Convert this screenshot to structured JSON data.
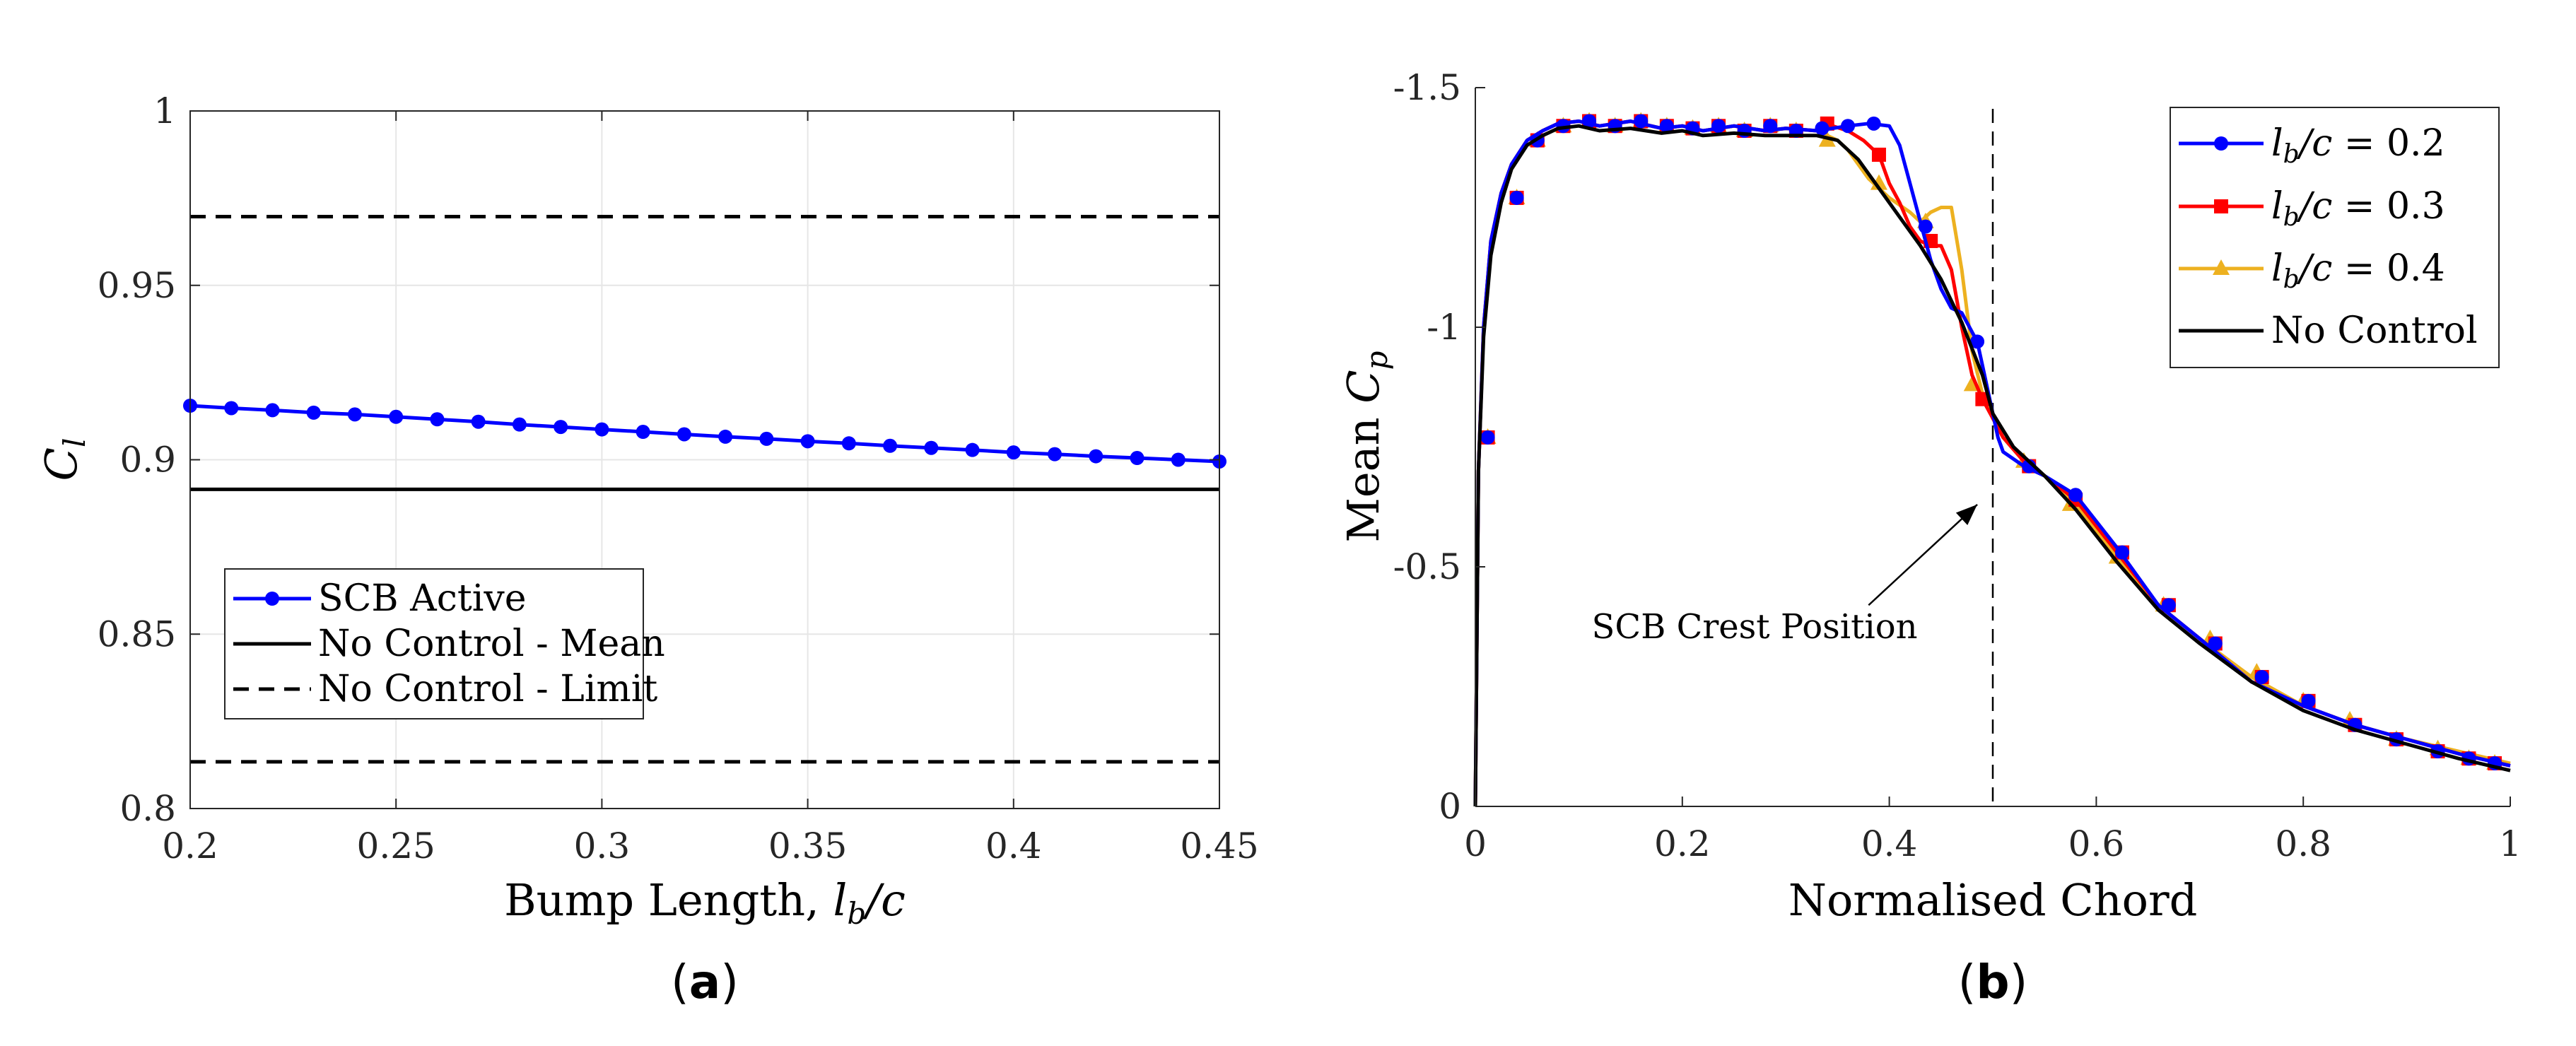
{
  "chart_data": [
    {
      "id": "a",
      "type": "line",
      "panel_label": "(a)",
      "xlabel": "Bump Length, l_b/c",
      "ylabel": "C_l",
      "xlim": [
        0.2,
        0.45
      ],
      "ylim": [
        0.8,
        1.0
      ],
      "xticks": [
        0.2,
        0.25,
        0.3,
        0.35,
        0.4,
        0.45
      ],
      "xtick_labels": [
        "0.2",
        "0.25",
        "0.3",
        "0.35",
        "0.4",
        "0.45"
      ],
      "yticks": [
        0.8,
        0.85,
        0.9,
        0.95,
        1.0
      ],
      "ytick_labels": [
        "0.8",
        "0.85",
        "0.9",
        "0.95",
        "1"
      ],
      "grid": true,
      "legend_position": "lower-left",
      "series": [
        {
          "name": "SCB Active",
          "color": "#0000ff",
          "marker": "circle",
          "x": [
            0.2,
            0.21,
            0.22,
            0.23,
            0.24,
            0.25,
            0.26,
            0.27,
            0.28,
            0.29,
            0.3,
            0.31,
            0.32,
            0.33,
            0.34,
            0.35,
            0.36,
            0.37,
            0.38,
            0.39,
            0.4,
            0.41,
            0.42,
            0.43,
            0.44,
            0.45
          ],
          "y": [
            0.9155,
            0.9148,
            0.9142,
            0.9135,
            0.913,
            0.9123,
            0.9116,
            0.9109,
            0.9101,
            0.9094,
            0.9087,
            0.908,
            0.9073,
            0.9066,
            0.906,
            0.9053,
            0.9047,
            0.904,
            0.9034,
            0.9028,
            0.9021,
            0.9016,
            0.901,
            0.9005,
            0.9,
            0.8995
          ]
        },
        {
          "name": "No Control - Mean",
          "color": "#000000",
          "style": "solid",
          "x": [
            0.2,
            0.45
          ],
          "y": [
            0.8915,
            0.8915
          ]
        },
        {
          "name": "No Control - Limit",
          "color": "#000000",
          "style": "dashed",
          "x": [
            0.2,
            0.45
          ],
          "y": [
            0.9697,
            0.9697
          ],
          "x_lower": [
            0.2,
            0.45
          ],
          "y_lower": [
            0.8134,
            0.8134
          ]
        }
      ]
    },
    {
      "id": "b",
      "type": "line",
      "panel_label": "(b)",
      "xlabel": "Normalised Chord",
      "ylabel": "Mean C_p",
      "xlim": [
        0,
        1
      ],
      "ylim": [
        0,
        -1.5
      ],
      "y_reversed": true,
      "xticks": [
        0,
        0.2,
        0.4,
        0.6,
        0.8,
        1
      ],
      "xtick_labels": [
        "0",
        "0.2",
        "0.4",
        "0.6",
        "0.8",
        "1"
      ],
      "yticks": [
        0,
        -0.5,
        -1,
        -1.5
      ],
      "ytick_labels": [
        "0",
        "-0.5",
        "-1",
        "-1.5"
      ],
      "grid": false,
      "legend_position": "top-right",
      "annotation": {
        "text": "SCB Crest Position",
        "line_x": 0.5,
        "arrow_from": [
          0.38,
          -0.42
        ],
        "arrow_to": [
          0.485,
          -0.63
        ]
      },
      "series": [
        {
          "name": "l_b/c = 0.2",
          "color": "#0000ff",
          "marker": "circle",
          "x": [
            0.0,
            0.003,
            0.008,
            0.015,
            0.025,
            0.035,
            0.05,
            0.065,
            0.08,
            0.1,
            0.12,
            0.15,
            0.18,
            0.2,
            0.22,
            0.25,
            0.28,
            0.3,
            0.33,
            0.36,
            0.38,
            0.4,
            0.41,
            0.42,
            0.43,
            0.44,
            0.45,
            0.46,
            0.47,
            0.48,
            0.485,
            0.49,
            0.495,
            0.5,
            0.505,
            0.51,
            0.53,
            0.55,
            0.58,
            0.62,
            0.66,
            0.7,
            0.75,
            0.8,
            0.85,
            0.9,
            0.95,
            1.0
          ],
          "y": [
            0.0,
            -0.7,
            -1.0,
            -1.18,
            -1.28,
            -1.34,
            -1.39,
            -1.41,
            -1.425,
            -1.43,
            -1.42,
            -1.43,
            -1.415,
            -1.42,
            -1.41,
            -1.42,
            -1.41,
            -1.415,
            -1.41,
            -1.42,
            -1.425,
            -1.42,
            -1.38,
            -1.3,
            -1.22,
            -1.14,
            -1.08,
            -1.04,
            -1.03,
            -0.99,
            -0.97,
            -0.92,
            -0.87,
            -0.82,
            -0.77,
            -0.74,
            -0.71,
            -0.69,
            -0.65,
            -0.54,
            -0.42,
            -0.35,
            -0.26,
            -0.21,
            -0.17,
            -0.14,
            -0.11,
            -0.085
          ],
          "markers_x": [
            0.012,
            0.04,
            0.06,
            0.085,
            0.11,
            0.135,
            0.16,
            0.185,
            0.21,
            0.235,
            0.26,
            0.285,
            0.31,
            0.335,
            0.36,
            0.385,
            0.435,
            0.485,
            0.535,
            0.58,
            0.625,
            0.67,
            0.715,
            0.76,
            0.805,
            0.85,
            0.89,
            0.93,
            0.96,
            0.985
          ],
          "markers_y": [
            -0.77,
            -1.27,
            -1.39,
            -1.42,
            -1.43,
            -1.42,
            -1.43,
            -1.42,
            -1.415,
            -1.42,
            -1.41,
            -1.42,
            -1.41,
            -1.415,
            -1.42,
            -1.425,
            -1.21,
            -0.97,
            -0.71,
            -0.65,
            -0.53,
            -0.42,
            -0.34,
            -0.27,
            -0.22,
            -0.17,
            -0.14,
            -0.115,
            -0.1,
            -0.09
          ]
        },
        {
          "name": "l_b/c = 0.3",
          "color": "#ff0000",
          "marker": "square",
          "x": [
            0.0,
            0.003,
            0.008,
            0.015,
            0.025,
            0.035,
            0.05,
            0.065,
            0.08,
            0.1,
            0.12,
            0.15,
            0.18,
            0.2,
            0.22,
            0.25,
            0.28,
            0.3,
            0.33,
            0.345,
            0.36,
            0.375,
            0.39,
            0.4,
            0.41,
            0.42,
            0.43,
            0.44,
            0.45,
            0.46,
            0.47,
            0.48,
            0.49,
            0.5,
            0.51,
            0.53,
            0.55,
            0.58,
            0.62,
            0.66,
            0.7,
            0.75,
            0.8,
            0.85,
            0.9,
            0.95,
            1.0
          ],
          "y": [
            0.0,
            -0.7,
            -1.0,
            -1.18,
            -1.28,
            -1.34,
            -1.39,
            -1.41,
            -1.425,
            -1.43,
            -1.42,
            -1.43,
            -1.415,
            -1.42,
            -1.41,
            -1.42,
            -1.41,
            -1.415,
            -1.41,
            -1.42,
            -1.41,
            -1.39,
            -1.36,
            -1.3,
            -1.26,
            -1.21,
            -1.18,
            -1.17,
            -1.17,
            -1.12,
            -1.0,
            -0.9,
            -0.85,
            -0.81,
            -0.77,
            -0.72,
            -0.69,
            -0.64,
            -0.53,
            -0.42,
            -0.35,
            -0.26,
            -0.21,
            -0.17,
            -0.14,
            -0.11,
            -0.085
          ],
          "markers_x": [
            0.012,
            0.04,
            0.06,
            0.085,
            0.11,
            0.135,
            0.16,
            0.185,
            0.21,
            0.235,
            0.26,
            0.285,
            0.31,
            0.34,
            0.39,
            0.44,
            0.49,
            0.535,
            0.58,
            0.625,
            0.67,
            0.715,
            0.76,
            0.805,
            0.85,
            0.89,
            0.93,
            0.96,
            0.985
          ],
          "markers_y": [
            -0.77,
            -1.27,
            -1.39,
            -1.42,
            -1.43,
            -1.42,
            -1.43,
            -1.42,
            -1.415,
            -1.42,
            -1.41,
            -1.42,
            -1.41,
            -1.425,
            -1.36,
            -1.18,
            -0.85,
            -0.71,
            -0.64,
            -0.53,
            -0.42,
            -0.34,
            -0.27,
            -0.22,
            -0.17,
            -0.14,
            -0.115,
            -0.1,
            -0.09
          ]
        },
        {
          "name": "l_b/c = 0.4",
          "color": "#edb120",
          "marker": "triangle",
          "x": [
            0.0,
            0.003,
            0.008,
            0.015,
            0.025,
            0.035,
            0.05,
            0.065,
            0.08,
            0.1,
            0.12,
            0.15,
            0.18,
            0.2,
            0.22,
            0.25,
            0.28,
            0.3,
            0.33,
            0.34,
            0.35,
            0.36,
            0.38,
            0.4,
            0.42,
            0.43,
            0.44,
            0.45,
            0.46,
            0.47,
            0.48,
            0.49,
            0.5,
            0.51,
            0.53,
            0.55,
            0.58,
            0.62,
            0.66,
            0.7,
            0.75,
            0.8,
            0.85,
            0.9,
            0.95,
            1.0
          ],
          "y": [
            0.0,
            -0.7,
            -1.0,
            -1.18,
            -1.28,
            -1.34,
            -1.39,
            -1.41,
            -1.425,
            -1.43,
            -1.42,
            -1.43,
            -1.415,
            -1.42,
            -1.41,
            -1.42,
            -1.41,
            -1.415,
            -1.41,
            -1.4,
            -1.39,
            -1.37,
            -1.31,
            -1.27,
            -1.24,
            -1.22,
            -1.24,
            -1.25,
            -1.25,
            -1.12,
            -0.95,
            -0.86,
            -0.81,
            -0.77,
            -0.72,
            -0.69,
            -0.63,
            -0.52,
            -0.42,
            -0.35,
            -0.27,
            -0.21,
            -0.17,
            -0.14,
            -0.115,
            -0.09
          ],
          "markers_x": [
            0.012,
            0.04,
            0.06,
            0.085,
            0.11,
            0.135,
            0.16,
            0.185,
            0.21,
            0.235,
            0.26,
            0.285,
            0.31,
            0.34,
            0.39,
            0.435,
            0.48,
            0.53,
            0.575,
            0.62,
            0.665,
            0.71,
            0.755,
            0.8,
            0.845,
            0.89,
            0.93,
            0.96,
            0.985
          ],
          "markers_y": [
            -0.77,
            -1.27,
            -1.39,
            -1.42,
            -1.43,
            -1.42,
            -1.43,
            -1.42,
            -1.415,
            -1.42,
            -1.41,
            -1.42,
            -1.41,
            -1.39,
            -1.3,
            -1.22,
            -0.88,
            -0.72,
            -0.63,
            -0.52,
            -0.42,
            -0.35,
            -0.28,
            -0.22,
            -0.18,
            -0.14,
            -0.12,
            -0.1,
            -0.09
          ]
        },
        {
          "name": "No Control",
          "color": "#000000",
          "marker": "none",
          "x": [
            0.0,
            0.003,
            0.008,
            0.015,
            0.025,
            0.035,
            0.05,
            0.065,
            0.08,
            0.1,
            0.12,
            0.15,
            0.18,
            0.2,
            0.22,
            0.25,
            0.28,
            0.3,
            0.33,
            0.35,
            0.37,
            0.39,
            0.41,
            0.43,
            0.45,
            0.47,
            0.49,
            0.5,
            0.52,
            0.55,
            0.58,
            0.62,
            0.66,
            0.7,
            0.75,
            0.8,
            0.85,
            0.9,
            0.95,
            1.0
          ],
          "y": [
            0.0,
            -0.7,
            -0.98,
            -1.15,
            -1.26,
            -1.33,
            -1.38,
            -1.4,
            -1.415,
            -1.42,
            -1.41,
            -1.415,
            -1.405,
            -1.41,
            -1.4,
            -1.405,
            -1.4,
            -1.4,
            -1.4,
            -1.39,
            -1.35,
            -1.29,
            -1.23,
            -1.17,
            -1.1,
            -1.01,
            -0.9,
            -0.82,
            -0.75,
            -0.69,
            -0.62,
            -0.51,
            -0.41,
            -0.34,
            -0.26,
            -0.2,
            -0.16,
            -0.13,
            -0.1,
            -0.075
          ]
        }
      ]
    }
  ]
}
